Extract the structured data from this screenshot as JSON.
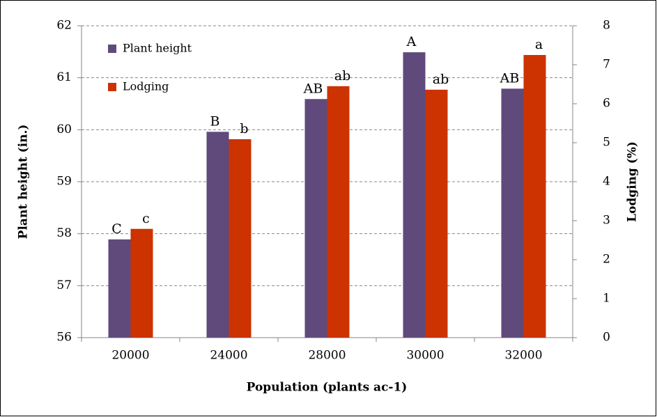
{
  "chart_data": {
    "type": "bar",
    "x_label": "Population (plants ac-1)",
    "y_label": "Plant height (in.)",
    "y2_label": "Lodging (%)",
    "categories": [
      "20000",
      "24000",
      "28000",
      "30000",
      "32000"
    ],
    "series": [
      {
        "name": "Plant height",
        "color": "#604a7b",
        "values": [
          57.89,
          59.96,
          60.59,
          61.49,
          60.79
        ],
        "significance_letters": [
          "C",
          "B",
          "AB",
          "A",
          "AB"
        ]
      },
      {
        "name": "Lodging",
        "color": "#cc3300",
        "axis": "y2",
        "values": [
          2.79,
          5.09,
          6.45,
          6.36,
          7.25
        ],
        "significance_letters": [
          "c",
          "b",
          "ab",
          "ab",
          "a"
        ]
      }
    ],
    "ylim": [
      56,
      62
    ],
    "yticks": [
      56,
      57,
      58,
      59,
      60,
      61,
      62
    ],
    "y2lim": [
      0,
      8
    ],
    "y2ticks": [
      0,
      1,
      2,
      3,
      4,
      5,
      6,
      7,
      8
    ],
    "grid": true,
    "legend": "top-left"
  }
}
